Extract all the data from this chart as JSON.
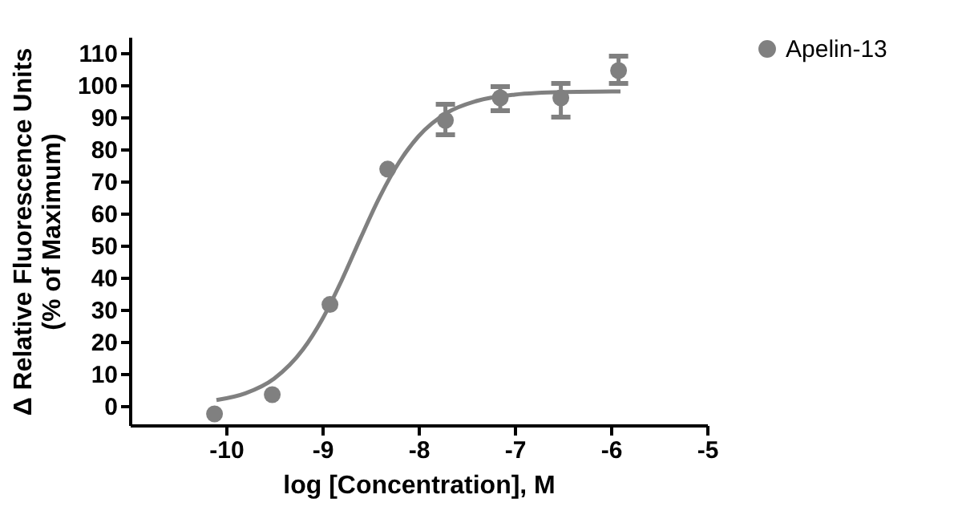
{
  "chart_data": {
    "type": "scatter",
    "xlabel": "log [Concentration], M",
    "ylabel": "Δ Relative Fluorescence Units\n(% of Maximum)",
    "series": [
      {
        "name": "Apelin-13",
        "color": "#808080",
        "marker": "circle",
        "x": [
          -10.12,
          -9.52,
          -8.92,
          -8.32,
          -7.72,
          -7.15,
          -6.52,
          -5.92
        ],
        "values": [
          -2.5,
          3.5,
          31.6,
          73.8,
          89,
          96,
          96,
          104.5
        ],
        "errors": [
          null,
          null,
          null,
          null,
          [
            84.5,
            94
          ],
          [
            92,
            99.5
          ],
          [
            90,
            100.5
          ],
          [
            100.5,
            109
          ]
        ]
      },
      {
        "color": "#808080",
        "type": "line",
        "line_style": "solid",
        "x": [
          -10.1,
          -9.8,
          -9.5,
          -9.2,
          -9.0,
          -8.8,
          -8.6,
          -8.4,
          -8.2,
          -8.0,
          -7.7,
          -7.4,
          -7.0,
          -6.5,
          -5.9
        ],
        "values": [
          1.8,
          3.9,
          8.5,
          17.6,
          27,
          39,
          52.4,
          65.3,
          76,
          84,
          91.4,
          95,
          97,
          97.8,
          98
        ]
      }
    ],
    "xlim": [
      -11,
      -5
    ],
    "xticks": [
      -10,
      -9,
      -8,
      -7,
      -6,
      -5
    ],
    "ylim": [
      -6,
      115
    ],
    "yticks": [
      0,
      10,
      20,
      30,
      40,
      50,
      60,
      70,
      80,
      90,
      100,
      110
    ],
    "grid": false,
    "legend": "top right"
  }
}
